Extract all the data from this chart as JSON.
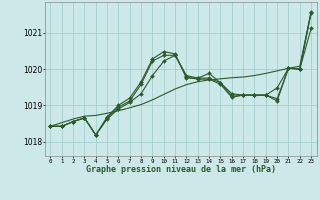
{
  "title": "Graphe pression niveau de la mer (hPa)",
  "bg_color": "#cce8e8",
  "line_color": "#2d5a2d",
  "grid_color": "#99cccc",
  "x_ticks": [
    0,
    1,
    2,
    3,
    4,
    5,
    6,
    7,
    8,
    9,
    10,
    11,
    12,
    13,
    14,
    15,
    16,
    17,
    18,
    19,
    20,
    21,
    22,
    23
  ],
  "ylim": [
    1017.6,
    1021.85
  ],
  "yticks": [
    1018,
    1019,
    1020,
    1021
  ],
  "series": {
    "line_smooth": [
      1018.42,
      1018.52,
      1018.62,
      1018.7,
      1018.72,
      1018.78,
      1018.85,
      1018.93,
      1019.02,
      1019.15,
      1019.3,
      1019.45,
      1019.57,
      1019.65,
      1019.7,
      1019.73,
      1019.76,
      1019.78,
      1019.82,
      1019.88,
      1019.95,
      1020.02,
      1020.08,
      1021.58
    ],
    "line_a": [
      1018.42,
      1018.42,
      1018.55,
      1018.65,
      1018.18,
      1018.62,
      1018.9,
      1019.08,
      1019.32,
      1019.82,
      1020.22,
      1020.38,
      1019.78,
      1019.72,
      1019.72,
      1019.58,
      1019.22,
      1019.28,
      1019.28,
      1019.28,
      1019.12,
      1020.02,
      1020.0,
      1021.12
    ],
    "line_b": [
      1018.42,
      1018.42,
      1018.55,
      1018.65,
      1018.18,
      1018.65,
      1018.95,
      1019.12,
      1019.58,
      1020.22,
      1020.38,
      1020.38,
      1019.82,
      1019.75,
      1019.88,
      1019.62,
      1019.32,
      1019.28,
      1019.28,
      1019.28,
      1019.18,
      1020.02,
      1020.0,
      1021.55
    ],
    "line_c": [
      1018.42,
      1018.42,
      1018.55,
      1018.65,
      1018.18,
      1018.68,
      1019.0,
      1019.2,
      1019.65,
      1020.28,
      1020.48,
      1020.42,
      1019.75,
      1019.75,
      1019.75,
      1019.62,
      1019.25,
      1019.28,
      1019.28,
      1019.28,
      1019.48,
      1020.02,
      1020.0,
      1021.58
    ]
  }
}
